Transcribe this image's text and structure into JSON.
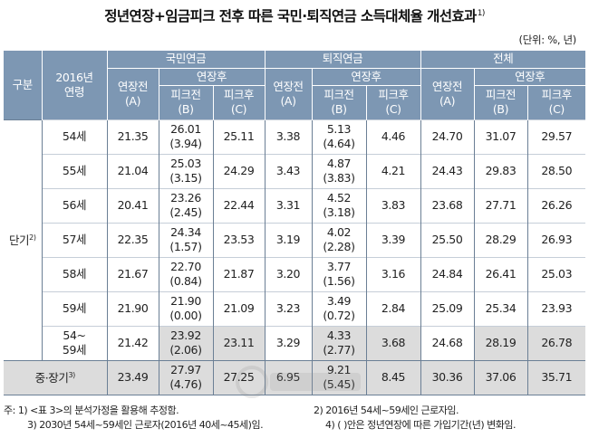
{
  "title": "정년연장+임금피크 전후 따른 국민·퇴직연금 소득대체율 개선효과",
  "title_note": "1)",
  "unit": "(단위: %, 년)",
  "header": {
    "group": "구분",
    "age_line1": "2016년",
    "age_line2": "연령",
    "national": "국민연금",
    "retirement": "퇴직연금",
    "total": "전체",
    "before_line1": "연장전",
    "before_line2": "(A)",
    "after": "연장후",
    "peak_before_line1": "피크전",
    "peak_before_line2": "(B)",
    "peak_after_line1": "피크후",
    "peak_after_line2": "(C)"
  },
  "short_term_label": "단기",
  "short_term_note": "2)",
  "rows": [
    {
      "age": "54세",
      "n_a": "21.35",
      "n_b": "26.01",
      "n_b_p": "(3.94)",
      "n_c": "25.11",
      "r_a": "3.38",
      "r_b": "5.13",
      "r_b_p": "(4.64)",
      "r_c": "4.46",
      "t_a": "24.70",
      "t_b": "31.07",
      "t_c": "29.57"
    },
    {
      "age": "55세",
      "n_a": "21.04",
      "n_b": "25.03",
      "n_b_p": "(3.15)",
      "n_c": "24.29",
      "r_a": "3.43",
      "r_b": "4.87",
      "r_b_p": "(3.83)",
      "r_c": "4.21",
      "t_a": "24.43",
      "t_b": "29.83",
      "t_c": "28.50"
    },
    {
      "age": "56세",
      "n_a": "20.41",
      "n_b": "23.26",
      "n_b_p": "(2.45)",
      "n_c": "22.44",
      "r_a": "3.31",
      "r_b": "4.52",
      "r_b_p": "(3.18)",
      "r_c": "3.83",
      "t_a": "23.68",
      "t_b": "27.71",
      "t_c": "26.26"
    },
    {
      "age": "57세",
      "n_a": "22.35",
      "n_b": "24.34",
      "n_b_p": "(1.57)",
      "n_c": "23.53",
      "r_a": "3.19",
      "r_b": "4.02",
      "r_b_p": "(2.28)",
      "r_c": "3.39",
      "t_a": "25.50",
      "t_b": "28.29",
      "t_c": "26.93"
    },
    {
      "age": "58세",
      "n_a": "21.67",
      "n_b": "22.70",
      "n_b_p": "(0.84)",
      "n_c": "21.87",
      "r_a": "3.20",
      "r_b": "3.77",
      "r_b_p": "(1.56)",
      "r_c": "3.16",
      "t_a": "24.84",
      "t_b": "26.41",
      "t_c": "25.03"
    },
    {
      "age": "59세",
      "n_a": "21.90",
      "n_b": "21.90",
      "n_b_p": "(0.00)",
      "n_c": "21.09",
      "r_a": "3.23",
      "r_b": "3.49",
      "r_b_p": "(0.72)",
      "r_c": "2.84",
      "t_a": "25.09",
      "t_b": "25.34",
      "t_c": "23.93"
    }
  ],
  "avg_row": {
    "age_line1": "54~",
    "age_line2": "59세",
    "n_a": "21.42",
    "n_b": "23.92",
    "n_b_p": "(2.06)",
    "n_c": "23.11",
    "r_a": "3.29",
    "r_b": "4.33",
    "r_b_p": "(2.77)",
    "r_c": "3.68",
    "t_a": "24.68",
    "t_b": "28.19",
    "t_c": "26.78"
  },
  "long_row": {
    "label": "중·장기",
    "note": "3)",
    "n_a": "23.49",
    "n_b": "27.97",
    "n_b_p": "(4.76)",
    "n_c": "27.25",
    "r_a": "6.95",
    "r_b": "9.21",
    "r_b_p": "(5.45)",
    "r_c": "8.45",
    "t_a": "30.36",
    "t_b": "37.06",
    "t_c": "35.71"
  },
  "notes": {
    "n1": "주: 1) <표 3>의 분석가정을 활용해 추정함.",
    "n2": "2) 2016년 54세~59세인 근로자임.",
    "n3": "3) 2030년 54세~59세인 근로자(2016년 40세~45세)임.",
    "n4": "4) ( )안은 정년연장에 따른 가입기간(년) 변화임."
  },
  "colors": {
    "header_bg": "#7d97b3",
    "shade": "#dcdcdc",
    "border": "#6b7f95"
  }
}
